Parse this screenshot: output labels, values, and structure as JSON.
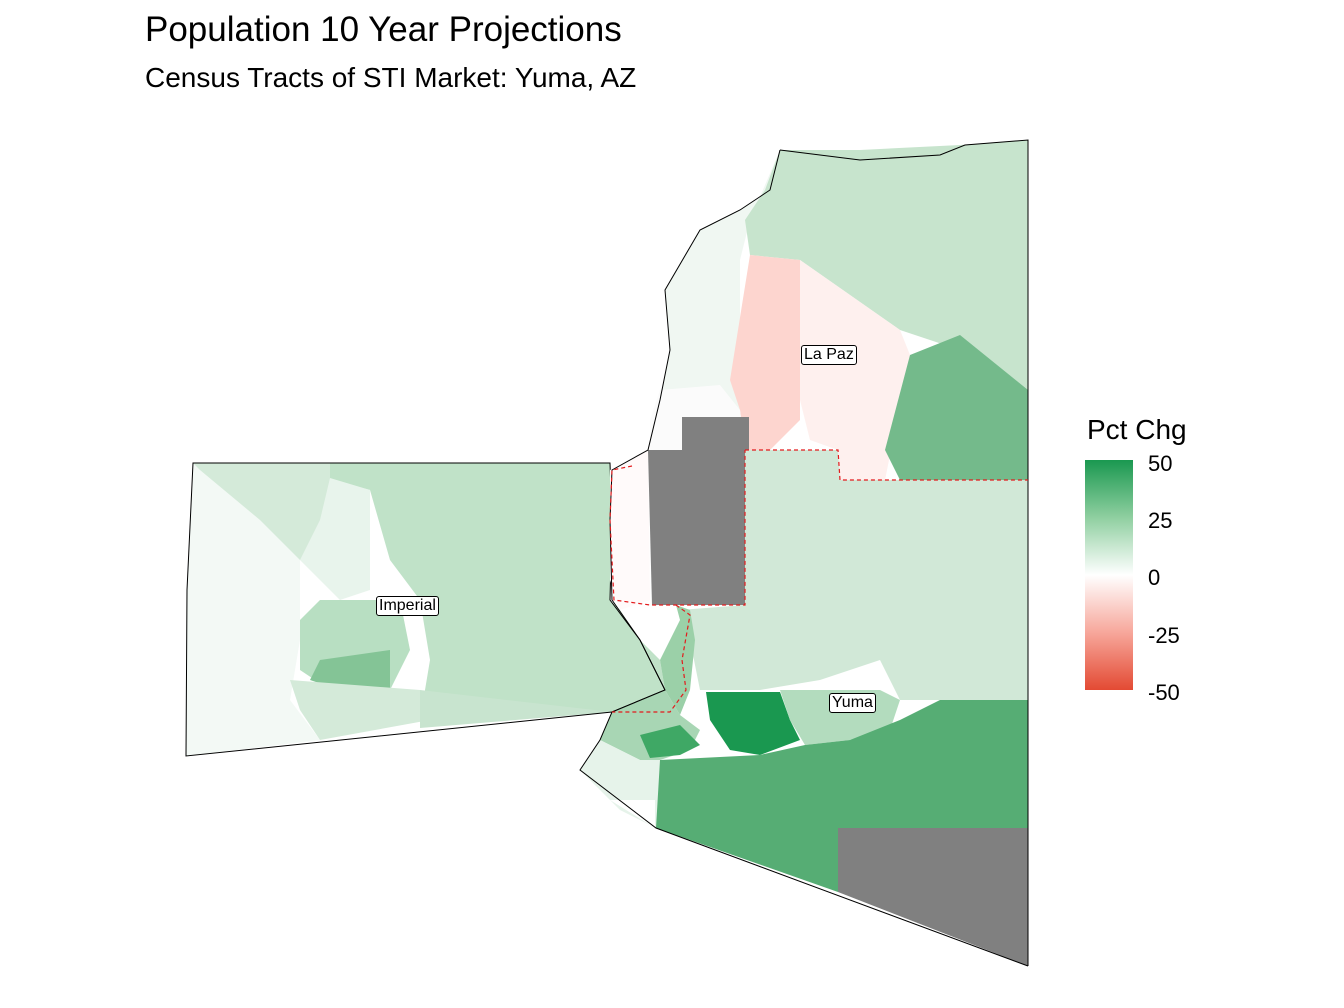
{
  "title": "Population 10 Year Projections",
  "subtitle": "Census Tracts of STI Market: Yuma, AZ",
  "legend": {
    "title": "Pct Chg",
    "ticks": [
      "50",
      "25",
      "0",
      "-25",
      "-50"
    ],
    "range": [
      -50,
      50
    ],
    "colors": {
      "high": "#1a9850",
      "mid": "#ffffff",
      "low": "#e34a33",
      "missing": "#808080"
    }
  },
  "counties": [
    {
      "name": "La Paz"
    },
    {
      "name": "Imperial"
    },
    {
      "name": "Yuma"
    }
  ],
  "market_boundary": {
    "color": "#e31a1c",
    "style": "dashed"
  }
}
